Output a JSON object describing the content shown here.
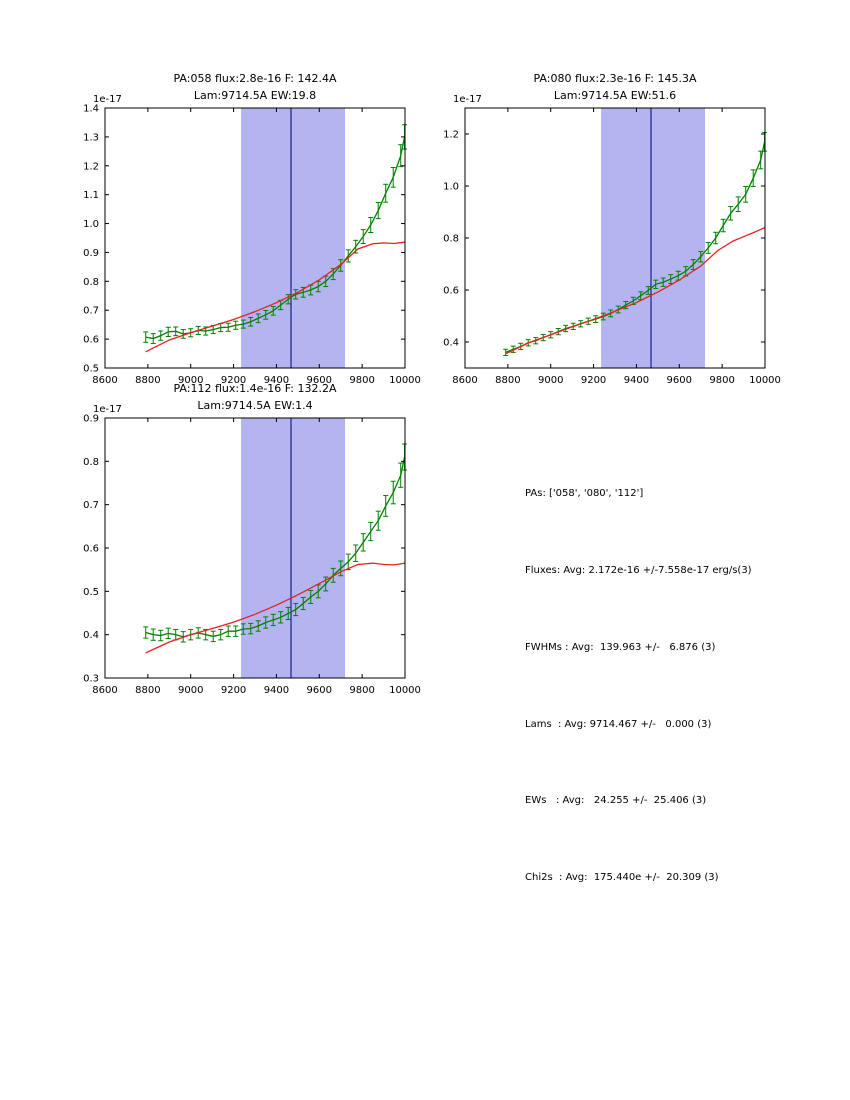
{
  "figure": {
    "background": "#ffffff"
  },
  "chart_data": [
    {
      "type": "line",
      "title": [
        "PA:058 flux:2.8e-16 F: 142.4A",
        "Lam:9714.5A EW:19.8"
      ],
      "offset_text": "1e-17",
      "xlim": [
        8600,
        10000
      ],
      "ylim": [
        0.5,
        1.4
      ],
      "xticks": [
        8600,
        8800,
        9000,
        9200,
        9400,
        9600,
        9800,
        10000
      ],
      "yticks": [
        0.5,
        0.6,
        0.7,
        0.8,
        0.9,
        1.0,
        1.1,
        1.2,
        1.3,
        1.4
      ],
      "band": [
        9235,
        9720
      ],
      "vline": 9468,
      "grid": false,
      "legend": "none",
      "colors": {
        "band": "#b4b4f0",
        "vline": "#000080",
        "data": "#008000",
        "model": "#e42222"
      },
      "series": [
        {
          "name": "spectrum",
          "x": [
            8790,
            8825,
            8860,
            8895,
            8930,
            8965,
            9000,
            9035,
            9070,
            9105,
            9140,
            9175,
            9210,
            9245,
            9280,
            9315,
            9350,
            9385,
            9420,
            9455,
            9490,
            9525,
            9560,
            9595,
            9630,
            9665,
            9700,
            9735,
            9770,
            9805,
            9840,
            9875,
            9910,
            9945,
            9980,
            9998
          ],
          "y": [
            0.607,
            0.602,
            0.612,
            0.625,
            0.627,
            0.618,
            0.622,
            0.63,
            0.628,
            0.633,
            0.64,
            0.641,
            0.648,
            0.652,
            0.66,
            0.672,
            0.684,
            0.698,
            0.718,
            0.738,
            0.755,
            0.762,
            0.77,
            0.782,
            0.8,
            0.825,
            0.855,
            0.888,
            0.92,
            0.955,
            0.995,
            1.045,
            1.105,
            1.16,
            1.235,
            1.3
          ],
          "yerr": [
            0.018,
            0.017,
            0.016,
            0.016,
            0.015,
            0.015,
            0.014,
            0.014,
            0.014,
            0.014,
            0.014,
            0.014,
            0.014,
            0.014,
            0.015,
            0.015,
            0.015,
            0.015,
            0.016,
            0.016,
            0.016,
            0.017,
            0.017,
            0.018,
            0.018,
            0.019,
            0.02,
            0.021,
            0.022,
            0.024,
            0.026,
            0.028,
            0.031,
            0.034,
            0.038,
            0.042
          ]
        },
        {
          "name": "model",
          "x": [
            8790,
            8900,
            9000,
            9100,
            9200,
            9300,
            9400,
            9500,
            9600,
            9700,
            9780,
            9850,
            9900,
            9950,
            10000
          ],
          "y": [
            0.556,
            0.597,
            0.622,
            0.645,
            0.668,
            0.695,
            0.726,
            0.762,
            0.805,
            0.858,
            0.912,
            0.93,
            0.933,
            0.931,
            0.936
          ]
        }
      ]
    },
    {
      "type": "line",
      "title": [
        "PA:080 flux:2.3e-16 F: 145.3A",
        "Lam:9714.5A EW:51.6"
      ],
      "offset_text": "1e-17",
      "xlim": [
        8600,
        10000
      ],
      "ylim": [
        0.3,
        1.3
      ],
      "xticks": [
        8600,
        8800,
        9000,
        9200,
        9400,
        9600,
        9800,
        10000
      ],
      "yticks": [
        0.4,
        0.6,
        0.8,
        1.0,
        1.2
      ],
      "band": [
        9235,
        9720
      ],
      "vline": 9468,
      "grid": false,
      "legend": "none",
      "colors": {
        "band": "#b4b4f0",
        "vline": "#000080",
        "data": "#008000",
        "model": "#e42222"
      },
      "series": [
        {
          "name": "spectrum",
          "x": [
            8790,
            8825,
            8860,
            8895,
            8930,
            8965,
            9000,
            9035,
            9070,
            9105,
            9140,
            9175,
            9210,
            9245,
            9280,
            9315,
            9350,
            9385,
            9420,
            9455,
            9490,
            9525,
            9560,
            9595,
            9630,
            9665,
            9700,
            9735,
            9770,
            9805,
            9840,
            9875,
            9910,
            9945,
            9980,
            9998
          ],
          "y": [
            0.36,
            0.372,
            0.383,
            0.397,
            0.405,
            0.417,
            0.428,
            0.44,
            0.452,
            0.46,
            0.47,
            0.48,
            0.488,
            0.498,
            0.51,
            0.525,
            0.542,
            0.558,
            0.578,
            0.598,
            0.622,
            0.63,
            0.642,
            0.655,
            0.672,
            0.698,
            0.728,
            0.762,
            0.8,
            0.848,
            0.895,
            0.93,
            0.968,
            1.03,
            1.1,
            1.17
          ],
          "yerr": [
            0.012,
            0.012,
            0.012,
            0.012,
            0.012,
            0.012,
            0.012,
            0.012,
            0.012,
            0.012,
            0.012,
            0.012,
            0.013,
            0.013,
            0.013,
            0.013,
            0.014,
            0.014,
            0.015,
            0.015,
            0.016,
            0.016,
            0.017,
            0.017,
            0.018,
            0.019,
            0.02,
            0.021,
            0.022,
            0.024,
            0.026,
            0.028,
            0.03,
            0.032,
            0.034,
            0.036
          ]
        },
        {
          "name": "model",
          "x": [
            8790,
            8900,
            9000,
            9100,
            9200,
            9300,
            9400,
            9500,
            9600,
            9700,
            9780,
            9850,
            9900,
            9950,
            10000
          ],
          "y": [
            0.355,
            0.398,
            0.428,
            0.458,
            0.487,
            0.518,
            0.552,
            0.592,
            0.638,
            0.692,
            0.752,
            0.788,
            0.805,
            0.822,
            0.84
          ]
        }
      ]
    },
    {
      "type": "line",
      "title": [
        "PA:112 flux:1.4e-16 F: 132.2A",
        "Lam:9714.5A EW:1.4"
      ],
      "offset_text": "1e-17",
      "xlim": [
        8600,
        10000
      ],
      "ylim": [
        0.3,
        0.9
      ],
      "xticks": [
        8600,
        8800,
        9000,
        9200,
        9400,
        9600,
        9800,
        10000
      ],
      "yticks": [
        0.3,
        0.4,
        0.5,
        0.6,
        0.7,
        0.8,
        0.9
      ],
      "band": [
        9235,
        9720
      ],
      "vline": 9468,
      "grid": false,
      "legend": "none",
      "colors": {
        "band": "#b4b4f0",
        "vline": "#000080",
        "data": "#008000",
        "model": "#e42222"
      },
      "series": [
        {
          "name": "spectrum",
          "x": [
            8790,
            8825,
            8860,
            8895,
            8930,
            8965,
            9000,
            9035,
            9070,
            9105,
            9140,
            9175,
            9210,
            9245,
            9280,
            9315,
            9350,
            9385,
            9420,
            9455,
            9490,
            9525,
            9560,
            9595,
            9630,
            9665,
            9700,
            9735,
            9770,
            9805,
            9840,
            9875,
            9910,
            9945,
            9980,
            9998
          ],
          "y": [
            0.405,
            0.4,
            0.398,
            0.403,
            0.4,
            0.395,
            0.4,
            0.404,
            0.4,
            0.396,
            0.4,
            0.408,
            0.408,
            0.413,
            0.414,
            0.42,
            0.428,
            0.434,
            0.44,
            0.449,
            0.458,
            0.472,
            0.487,
            0.5,
            0.517,
            0.537,
            0.553,
            0.568,
            0.588,
            0.613,
            0.638,
            0.663,
            0.697,
            0.728,
            0.768,
            0.81
          ],
          "yerr": [
            0.013,
            0.013,
            0.012,
            0.012,
            0.012,
            0.012,
            0.012,
            0.012,
            0.012,
            0.012,
            0.012,
            0.012,
            0.012,
            0.012,
            0.012,
            0.012,
            0.013,
            0.013,
            0.013,
            0.014,
            0.014,
            0.014,
            0.015,
            0.015,
            0.016,
            0.016,
            0.017,
            0.018,
            0.019,
            0.02,
            0.021,
            0.022,
            0.024,
            0.026,
            0.028,
            0.03
          ]
        },
        {
          "name": "model",
          "x": [
            8790,
            8900,
            9000,
            9100,
            9200,
            9300,
            9400,
            9500,
            9600,
            9700,
            9780,
            9850,
            9900,
            9950,
            10000
          ],
          "y": [
            0.358,
            0.383,
            0.4,
            0.414,
            0.429,
            0.447,
            0.468,
            0.492,
            0.518,
            0.545,
            0.562,
            0.565,
            0.562,
            0.561,
            0.565
          ]
        }
      ]
    }
  ],
  "stats_panel": {
    "lines": [
      "PAs: ['058', '080', '112']",
      "Fluxes: Avg: 2.172e-16 +/-7.558e-17 erg/s(3)",
      "FWHMs : Avg:  139.963 +/-   6.876 (3)",
      "Lams  : Avg: 9714.467 +/-   0.000 (3)",
      "EWs   : Avg:   24.255 +/-  25.406 (3)",
      "Chi2s  : Avg:  175.440e +/-  20.309 (3)"
    ]
  }
}
